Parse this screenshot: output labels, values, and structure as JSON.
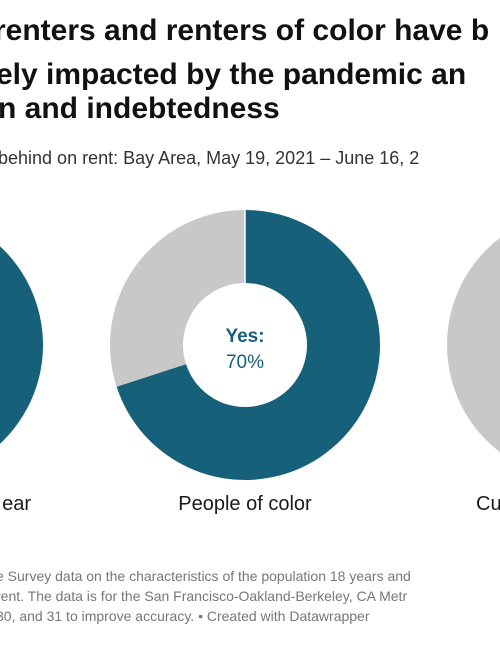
{
  "chart_data": {
    "type": "pie",
    "title_lines": [
      "renters and renters of color have b",
      "ely impacted by the pandemic an",
      "n and indebtedness"
    ],
    "subtitle": "behind on rent: Bay Area, May 19, 2021 – June 16, 2",
    "donuts": [
      {
        "label": "ear",
        "slices": [
          {
            "name": "Yes",
            "value": 60
          },
          {
            "name": "No",
            "value": 40
          }
        ],
        "center_label": "",
        "center_value": ""
      },
      {
        "label": "People of color",
        "slices": [
          {
            "name": "Yes",
            "value": 70
          },
          {
            "name": "No",
            "value": 30
          }
        ],
        "center_label": "Yes:",
        "center_value": "70%"
      },
      {
        "label": "Cu",
        "slices": [
          {
            "name": "Yes",
            "value": 0
          },
          {
            "name": "No",
            "value": 100
          }
        ],
        "center_label": "",
        "center_value": ""
      }
    ],
    "colors": {
      "yes": "#17607a",
      "no": "#c8c8c8"
    }
  },
  "notes": [
    "e Survey data on the characteristics of the population 18 years and",
    "rent. The data is for the San Francisco-Oakland-Berkeley, CA Metr",
    "30, and 31 to improve accuracy. • Created with Datawrapper"
  ]
}
